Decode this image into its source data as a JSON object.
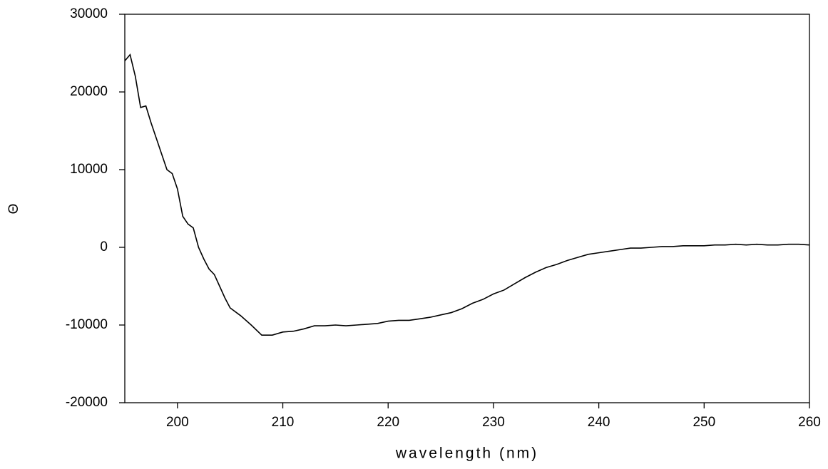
{
  "chart_data": {
    "type": "line",
    "xlabel": "wavelength (nm)",
    "ylabel": "Θ",
    "x": [
      195,
      195.5,
      196,
      196.5,
      197,
      197.5,
      198,
      198.5,
      199,
      199.5,
      200,
      200.5,
      201,
      201.5,
      202,
      202.5,
      203,
      203.5,
      204,
      204.5,
      205,
      206,
      207,
      208,
      209,
      210,
      211,
      212,
      213,
      214,
      215,
      216,
      217,
      218,
      219,
      220,
      221,
      222,
      223,
      224,
      225,
      226,
      227,
      228,
      229,
      230,
      231,
      232,
      233,
      234,
      235,
      236,
      237,
      238,
      239,
      240,
      241,
      242,
      243,
      244,
      245,
      246,
      247,
      248,
      249,
      250,
      251,
      252,
      253,
      254,
      255,
      256,
      257,
      258,
      259,
      260
    ],
    "values": [
      24000,
      24800,
      22000,
      18000,
      18200,
      16000,
      14000,
      12000,
      10000,
      9500,
      7500,
      4000,
      3000,
      2500,
      0,
      -1500,
      -2800,
      -3500,
      -5000,
      -6500,
      -7800,
      -8800,
      -10000,
      -11300,
      -11300,
      -10900,
      -10800,
      -10500,
      -10100,
      -10100,
      -10000,
      -10100,
      -10000,
      -9900,
      -9800,
      -9500,
      -9400,
      -9400,
      -9200,
      -9000,
      -8700,
      -8400,
      -7900,
      -7200,
      -6700,
      -6000,
      -5500,
      -4700,
      -3900,
      -3200,
      -2600,
      -2200,
      -1700,
      -1300,
      -900,
      -700,
      -500,
      -300,
      -100,
      -100,
      0,
      100,
      100,
      200,
      200,
      200,
      300,
      300,
      400,
      300,
      400,
      300,
      300,
      400,
      400,
      300
    ],
    "color": "#000000",
    "xlim": [
      195,
      260
    ],
    "xticks": [
      200,
      210,
      220,
      230,
      240,
      250,
      260
    ],
    "ylim": [
      -20000,
      30000
    ],
    "yticks": [
      -20000,
      -10000,
      0,
      10000,
      20000,
      30000
    ]
  }
}
